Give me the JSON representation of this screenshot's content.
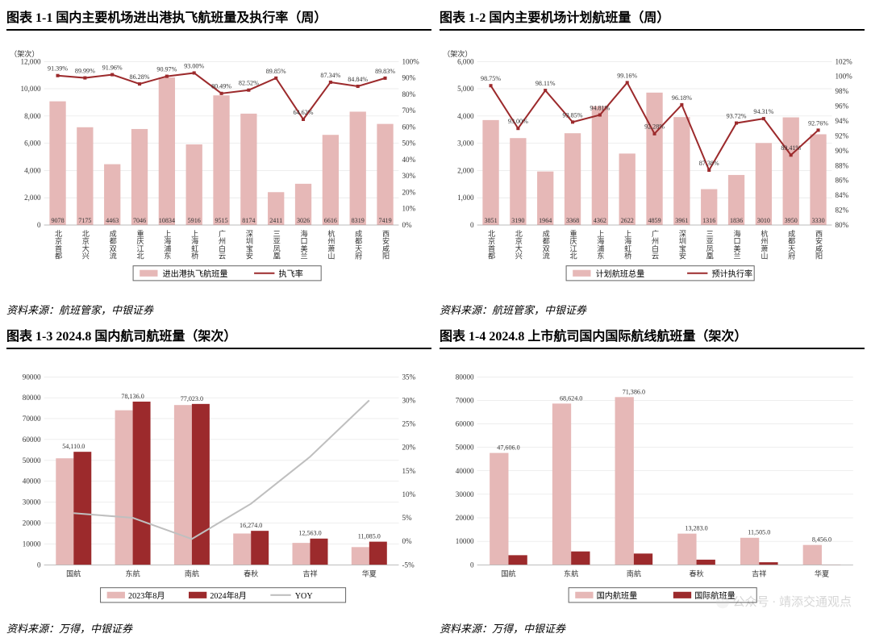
{
  "colors": {
    "bar_light": "#e6b8b7",
    "bar_dark": "#9c2a2c",
    "line_dark": "#9c2a2c",
    "line_gray": "#bfbfbf",
    "border": "#000000",
    "grid": "#dddddd",
    "text": "#333333"
  },
  "typography": {
    "title_fontsize": 16,
    "tick_fontsize": 9,
    "label_fontsize": 8
  },
  "watermark": "公众号 · 靖添交通观点",
  "chart11": {
    "title": "图表 1-1 国内主要机场进出港执飞航班量及执行率（周）",
    "type": "bar+line",
    "y1_label": "（架次）",
    "y1_lim": [
      0,
      12000
    ],
    "y1_step": 2000,
    "y2_lim": [
      0,
      100
    ],
    "y2_step": 10,
    "y2_suffix": "%",
    "categories": [
      "北京首都",
      "北京大兴",
      "成都双流",
      "重庆江北",
      "上海浦东",
      "上海虹桥",
      "广州白云",
      "深圳宝安",
      "三亚凤凰",
      "海口美兰",
      "杭州萧山",
      "成都天府",
      "西安咸阳"
    ],
    "bars": [
      9078,
      7175,
      4463,
      7046,
      10834,
      5916,
      9515,
      8174,
      2411,
      3026,
      6616,
      8319,
      7419
    ],
    "line": [
      91.39,
      89.99,
      91.96,
      86.28,
      90.97,
      93.0,
      80.49,
      82.52,
      89.85,
      64.62,
      87.34,
      84.84,
      89.83
    ],
    "line_labels": [
      "91.39%",
      "89.99%",
      "91.96%",
      "86.28%",
      "90.97%",
      "93.00%",
      "80.49%",
      "82.52%",
      "89.85%",
      "64.62%",
      "87.34%",
      "84.84%",
      "89.83%"
    ],
    "legend": {
      "bar": "进出港执飞航班量",
      "line": "执飞率"
    },
    "source": "资料来源：航班管家，中银证券"
  },
  "chart12": {
    "title": "图表 1-2 国内主要机场计划航班量（周）",
    "type": "bar+line",
    "y1_label": "（架次）",
    "y1_lim": [
      0,
      6000
    ],
    "y1_step": 1000,
    "y2_lim": [
      80,
      102
    ],
    "y2_step": 2,
    "y2_suffix": "%",
    "categories": [
      "北京首都",
      "北京大兴",
      "成都双流",
      "重庆江北",
      "上海浦东",
      "上海虹桥",
      "广州白云",
      "深圳宝安",
      "三亚凤凰",
      "海口美兰",
      "杭州萧山",
      "成都天府",
      "西安咸阳"
    ],
    "bars": [
      3851,
      3190,
      1964,
      3368,
      4362,
      2622,
      4859,
      3961,
      1316,
      1836,
      3010,
      3950,
      3330
    ],
    "line": [
      98.75,
      93.0,
      98.11,
      93.85,
      94.81,
      99.16,
      92.28,
      96.18,
      87.38,
      93.72,
      94.31,
      89.41,
      92.76
    ],
    "line_labels": [
      "98.75%",
      "93.00%",
      "98.11%",
      "93.85%",
      "94.81%",
      "99.16%",
      "92.28%",
      "96.18%",
      "87.38%",
      "93.72%",
      "94.31%",
      "89.41%",
      "92.76%"
    ],
    "legend": {
      "bar": "计划航班总量",
      "line": "预计执行率"
    },
    "source": "资料来源：航班管家，中银证券"
  },
  "chart13": {
    "title": "图表 1-3 2024.8 国内航司航班量（架次）",
    "type": "grouped-bar+line",
    "y1_lim": [
      0,
      90000
    ],
    "y1_step": 10000,
    "y2_lim": [
      -5,
      35
    ],
    "y2_step": 5,
    "y2_suffix": "%",
    "categories": [
      "国航",
      "东航",
      "南航",
      "春秋",
      "吉祥",
      "华夏"
    ],
    "series1": {
      "name": "2023年8月",
      "values": [
        51000,
        74000,
        76500,
        15000,
        10500,
        8500
      ]
    },
    "series2": {
      "name": "2024年8月",
      "values": [
        54110.0,
        78136.0,
        77023.0,
        16274.0,
        12563.0,
        11085.0
      ]
    },
    "series2_labels": [
      "54,110.0",
      "78,136.0",
      "77,023.0",
      "16,274.0",
      "12,563.0",
      "11,085.0"
    ],
    "line": {
      "name": "YOY",
      "values": [
        6,
        5,
        0.5,
        8,
        18,
        30
      ]
    },
    "legend": {
      "s1": "2023年8月",
      "s2": "2024年8月",
      "line": "YOY"
    },
    "source": "资料来源：万得，中银证券"
  },
  "chart14": {
    "title": "图表 1-4 2024.8 上市航司国内国际航线航班量（架次）",
    "type": "grouped-bar",
    "y1_lim": [
      0,
      80000
    ],
    "y1_step": 10000,
    "categories": [
      "国航",
      "东航",
      "南航",
      "春秋",
      "吉祥",
      "华夏"
    ],
    "series1": {
      "name": "国内航班量",
      "values": [
        47606.0,
        68624.0,
        71386.0,
        13283.0,
        11505.0,
        8456.0
      ]
    },
    "series1_labels": [
      "47,606.0",
      "68,624.0",
      "71,386.0",
      "13,283.0",
      "11,505.0",
      "8,456.0"
    ],
    "series2": {
      "name": "国际航班量",
      "values": [
        4100,
        5700,
        4800,
        2200,
        1100,
        120
      ]
    },
    "legend": {
      "s1": "国内航班量",
      "s2": "国际航班量"
    },
    "source": "资料来源：万得，中银证券"
  }
}
